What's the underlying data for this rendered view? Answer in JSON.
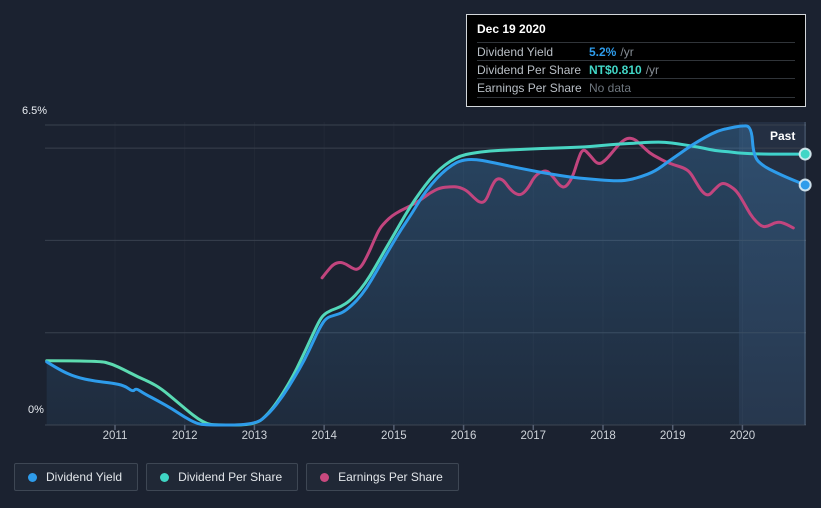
{
  "tooltip": {
    "date": "Dec 19 2020",
    "rows": [
      {
        "label": "Dividend Yield",
        "value": "5.2%",
        "suffix": "/yr",
        "value_color": "#2e9ceb"
      },
      {
        "label": "Dividend Per Share",
        "value": "NT$0.810",
        "suffix": "/yr",
        "value_color": "#41d6c6"
      },
      {
        "label": "Earnings Per Share",
        "value": "No data",
        "suffix": "",
        "value_color": "#6e767e"
      }
    ]
  },
  "legend": {
    "items": [
      {
        "label": "Dividend Yield",
        "color": "#2e9ceb"
      },
      {
        "label": "Dividend Per Share",
        "color": "#3fd5c4"
      },
      {
        "label": "Earnings Per Share",
        "color": "#c9497f"
      }
    ]
  },
  "chart_data": {
    "type": "line",
    "title": "",
    "x_range": [
      2010.0,
      2020.9
    ],
    "ylim": [
      0,
      6.5
    ],
    "y_axis": {
      "top_label": "6.5%",
      "bottom_label": "0%"
    },
    "x_tick_years": [
      2011,
      2012,
      2013,
      2014,
      2015,
      2016,
      2017,
      2018,
      2019,
      2020
    ],
    "x_tick_labels": [
      "2011",
      "2012",
      "2013",
      "2014",
      "2015",
      "2016",
      "2017",
      "2018",
      "2019",
      "2020"
    ],
    "gridline_pcts": [
      6.5,
      6,
      4,
      2
    ],
    "grid": true,
    "legend_position": "bottom",
    "past_band": {
      "start_year": 2019.95,
      "end_year": 2020.9,
      "label": "Past"
    },
    "hover_year": 2020.9,
    "units_note": "Dividend Yield in % of axis; Dividend Per Share and Earnings Per Share are NT$ series drawn on a separate scale - point values below are their plotted axis-percent equivalents.",
    "series": [
      {
        "name": "Dividend Yield",
        "color": "#2e9ceb",
        "fill": true,
        "end_marker": true,
        "points": [
          [
            2010.02,
            1.37
          ],
          [
            2010.21,
            1.19
          ],
          [
            2010.43,
            1.04
          ],
          [
            2010.71,
            0.95
          ],
          [
            2010.96,
            0.91
          ],
          [
            2011.14,
            0.85
          ],
          [
            2011.26,
            0.72
          ],
          [
            2011.3,
            0.8
          ],
          [
            2011.43,
            0.67
          ],
          [
            2011.62,
            0.52
          ],
          [
            2011.82,
            0.35
          ],
          [
            2012.0,
            0.17
          ],
          [
            2012.16,
            0.04
          ],
          [
            2012.29,
            0
          ],
          [
            2013.01,
            0
          ],
          [
            2013.22,
            0.26
          ],
          [
            2013.41,
            0.63
          ],
          [
            2013.57,
            1.02
          ],
          [
            2013.72,
            1.41
          ],
          [
            2013.84,
            1.8
          ],
          [
            2013.94,
            2.12
          ],
          [
            2014.03,
            2.32
          ],
          [
            2014.15,
            2.38
          ],
          [
            2014.26,
            2.43
          ],
          [
            2014.39,
            2.58
          ],
          [
            2014.54,
            2.82
          ],
          [
            2014.68,
            3.14
          ],
          [
            2014.82,
            3.51
          ],
          [
            2014.97,
            3.9
          ],
          [
            2015.11,
            4.25
          ],
          [
            2015.26,
            4.59
          ],
          [
            2015.4,
            4.94
          ],
          [
            2015.54,
            5.22
          ],
          [
            2015.69,
            5.46
          ],
          [
            2015.83,
            5.63
          ],
          [
            2015.97,
            5.74
          ],
          [
            2016.16,
            5.76
          ],
          [
            2016.38,
            5.7
          ],
          [
            2016.66,
            5.61
          ],
          [
            2016.95,
            5.52
          ],
          [
            2017.24,
            5.44
          ],
          [
            2017.53,
            5.37
          ],
          [
            2017.81,
            5.33
          ],
          [
            2018.1,
            5.29
          ],
          [
            2018.32,
            5.29
          ],
          [
            2018.53,
            5.37
          ],
          [
            2018.75,
            5.5
          ],
          [
            2018.93,
            5.7
          ],
          [
            2019.11,
            5.89
          ],
          [
            2019.28,
            6.07
          ],
          [
            2019.47,
            6.24
          ],
          [
            2019.64,
            6.37
          ],
          [
            2019.8,
            6.43
          ],
          [
            2019.97,
            6.48
          ],
          [
            2020.13,
            6.48
          ],
          [
            2020.16,
            5.81
          ],
          [
            2020.3,
            5.61
          ],
          [
            2020.47,
            5.48
          ],
          [
            2020.66,
            5.35
          ],
          [
            2020.9,
            5.2
          ]
        ]
      },
      {
        "name": "Dividend Per Share",
        "color": "#41d6c6",
        "color_start": "#5fdcae",
        "color_end": "#3ed2cd",
        "fill": false,
        "end_marker": true,
        "points": [
          [
            2010.02,
            1.39
          ],
          [
            2010.78,
            1.39
          ],
          [
            2010.96,
            1.32
          ],
          [
            2011.14,
            1.19
          ],
          [
            2011.33,
            1.04
          ],
          [
            2011.5,
            0.93
          ],
          [
            2011.67,
            0.78
          ],
          [
            2011.86,
            0.54
          ],
          [
            2012.05,
            0.3
          ],
          [
            2012.19,
            0.13
          ],
          [
            2012.33,
            0.02
          ],
          [
            2012.43,
            0
          ],
          [
            2013.01,
            0
          ],
          [
            2013.2,
            0.24
          ],
          [
            2013.37,
            0.59
          ],
          [
            2013.54,
            1.02
          ],
          [
            2013.68,
            1.45
          ],
          [
            2013.8,
            1.84
          ],
          [
            2013.9,
            2.17
          ],
          [
            2013.98,
            2.38
          ],
          [
            2014.1,
            2.49
          ],
          [
            2014.24,
            2.56
          ],
          [
            2014.37,
            2.69
          ],
          [
            2014.52,
            2.93
          ],
          [
            2014.66,
            3.23
          ],
          [
            2014.8,
            3.6
          ],
          [
            2014.95,
            3.99
          ],
          [
            2015.09,
            4.36
          ],
          [
            2015.23,
            4.72
          ],
          [
            2015.38,
            5.05
          ],
          [
            2015.52,
            5.33
          ],
          [
            2015.66,
            5.55
          ],
          [
            2015.81,
            5.72
          ],
          [
            2015.95,
            5.83
          ],
          [
            2016.12,
            5.89
          ],
          [
            2016.38,
            5.94
          ],
          [
            2016.67,
            5.96
          ],
          [
            2016.95,
            5.98
          ],
          [
            2017.31,
            6.0
          ],
          [
            2017.67,
            6.02
          ],
          [
            2017.96,
            6.05
          ],
          [
            2018.25,
            6.09
          ],
          [
            2018.5,
            6.11
          ],
          [
            2018.7,
            6.13
          ],
          [
            2018.89,
            6.13
          ],
          [
            2019.08,
            6.09
          ],
          [
            2019.25,
            6.05
          ],
          [
            2019.44,
            6.0
          ],
          [
            2019.62,
            5.94
          ],
          [
            2019.8,
            5.92
          ],
          [
            2019.97,
            5.89
          ],
          [
            2020.25,
            5.87
          ],
          [
            2020.54,
            5.87
          ],
          [
            2020.9,
            5.87
          ]
        ]
      },
      {
        "name": "Earnings Per Share",
        "color": "#c2457e",
        "fill": false,
        "end_marker": false,
        "points": [
          [
            2013.97,
            3.19
          ],
          [
            2014.06,
            3.36
          ],
          [
            2014.14,
            3.49
          ],
          [
            2014.23,
            3.53
          ],
          [
            2014.31,
            3.49
          ],
          [
            2014.4,
            3.4
          ],
          [
            2014.47,
            3.36
          ],
          [
            2014.54,
            3.44
          ],
          [
            2014.63,
            3.7
          ],
          [
            2014.72,
            4.01
          ],
          [
            2014.8,
            4.27
          ],
          [
            2014.89,
            4.42
          ],
          [
            2014.97,
            4.53
          ],
          [
            2015.09,
            4.64
          ],
          [
            2015.23,
            4.74
          ],
          [
            2015.38,
            4.87
          ],
          [
            2015.52,
            5.03
          ],
          [
            2015.66,
            5.14
          ],
          [
            2015.81,
            5.16
          ],
          [
            2015.92,
            5.16
          ],
          [
            2016.04,
            5.09
          ],
          [
            2016.15,
            4.92
          ],
          [
            2016.24,
            4.81
          ],
          [
            2016.32,
            4.85
          ],
          [
            2016.41,
            5.2
          ],
          [
            2016.48,
            5.35
          ],
          [
            2016.57,
            5.31
          ],
          [
            2016.65,
            5.14
          ],
          [
            2016.74,
            5.01
          ],
          [
            2016.83,
            4.98
          ],
          [
            2016.93,
            5.14
          ],
          [
            2017.01,
            5.37
          ],
          [
            2017.1,
            5.48
          ],
          [
            2017.2,
            5.52
          ],
          [
            2017.3,
            5.35
          ],
          [
            2017.38,
            5.18
          ],
          [
            2017.46,
            5.14
          ],
          [
            2017.56,
            5.35
          ],
          [
            2017.64,
            5.74
          ],
          [
            2017.71,
            6.0
          ],
          [
            2017.81,
            5.85
          ],
          [
            2017.93,
            5.63
          ],
          [
            2018.04,
            5.74
          ],
          [
            2018.16,
            5.96
          ],
          [
            2018.26,
            6.13
          ],
          [
            2018.35,
            6.22
          ],
          [
            2018.45,
            6.2
          ],
          [
            2018.56,
            6.05
          ],
          [
            2018.67,
            5.89
          ],
          [
            2018.79,
            5.79
          ],
          [
            2018.9,
            5.7
          ],
          [
            2019.03,
            5.63
          ],
          [
            2019.16,
            5.57
          ],
          [
            2019.25,
            5.48
          ],
          [
            2019.33,
            5.27
          ],
          [
            2019.42,
            5.05
          ],
          [
            2019.51,
            4.96
          ],
          [
            2019.59,
            5.09
          ],
          [
            2019.68,
            5.22
          ],
          [
            2019.74,
            5.24
          ],
          [
            2019.82,
            5.18
          ],
          [
            2019.92,
            5.07
          ],
          [
            2020.03,
            4.79
          ],
          [
            2020.11,
            4.57
          ],
          [
            2020.2,
            4.4
          ],
          [
            2020.29,
            4.29
          ],
          [
            2020.37,
            4.31
          ],
          [
            2020.46,
            4.38
          ],
          [
            2020.54,
            4.4
          ],
          [
            2020.63,
            4.35
          ],
          [
            2020.73,
            4.27
          ]
        ]
      }
    ]
  }
}
